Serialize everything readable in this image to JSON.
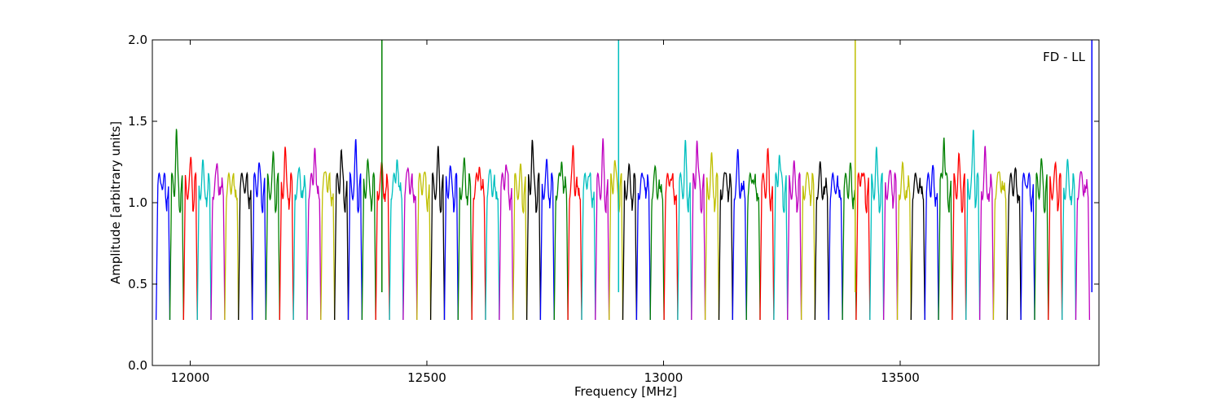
{
  "chart_data": {
    "type": "line",
    "title": "",
    "xlabel": "Frequency [MHz]",
    "ylabel": "Amplitude [arbitrary units]",
    "annotation": "FD - LL",
    "xlim": [
      11920,
      13920
    ],
    "ylim": [
      0.0,
      2.0
    ],
    "xticks": [
      12000,
      12500,
      13000,
      13500
    ],
    "xtick_labels": [
      "12000",
      "12500",
      "13000",
      "13500"
    ],
    "yticks": [
      0.0,
      0.5,
      1.0,
      1.5,
      2.0
    ],
    "ytick_labels": [
      "0.0",
      "0.5",
      "1.0",
      "1.5",
      "2.0"
    ],
    "grid": false,
    "legend": "none",
    "series_description": "Repeating channel bandpass responses; each channel spans ~29 MHz with an amplitude near 1.1-1.3 and dips to ~0.3 at its edges; colors cycle blue, green, red, cyan, magenta, yellow, black.",
    "color_cycle": [
      "#0000ff",
      "#008000",
      "#ff0000",
      "#00bfbf",
      "#bf00bf",
      "#bfbf00",
      "#000000"
    ],
    "channel_start": 11928,
    "channel_width": 29,
    "channel_count": 68,
    "channel_peaks": [
      1.26,
      1.5,
      1.31,
      1.27,
      1.32,
      1.26,
      1.24,
      1.3,
      1.33,
      1.36,
      1.26,
      1.48,
      1.3,
      1.41,
      1.4,
      1.29,
      1.29,
      1.42,
      1.3,
      1.26,
      1.35,
      1.26,
      1.3,
      1.38,
      1.26,
      1.36,
      1.24,
      1.46,
      1.28,
      1.41,
      1.41,
      1.3,
      1.4,
      1.35,
      1.24,
      1.29,
      1.25,
      1.3,
      1.4,
      1.5,
      1.31,
      1.3,
      1.35,
      1.3,
      1.36,
      1.43,
      1.26,
      1.25,
      1.26,
      1.22,
      1.28,
      1.33,
      1.35,
      1.26,
      1.25,
      1.24,
      1.28,
      1.56,
      1.32,
      1.52,
      1.35,
      1.3,
      1.28,
      1.26,
      1.3,
      1.28,
      1.27,
      1.26
    ],
    "spikes": [
      {
        "x": 12405,
        "y": 2.0,
        "color": "#008000"
      },
      {
        "x": 12905,
        "y": 2.0,
        "color": "#00bfbf"
      },
      {
        "x": 13405,
        "y": 2.0,
        "color": "#bfbf00"
      },
      {
        "x": 13905,
        "y": 2.0,
        "color": "#0000ff"
      }
    ]
  }
}
